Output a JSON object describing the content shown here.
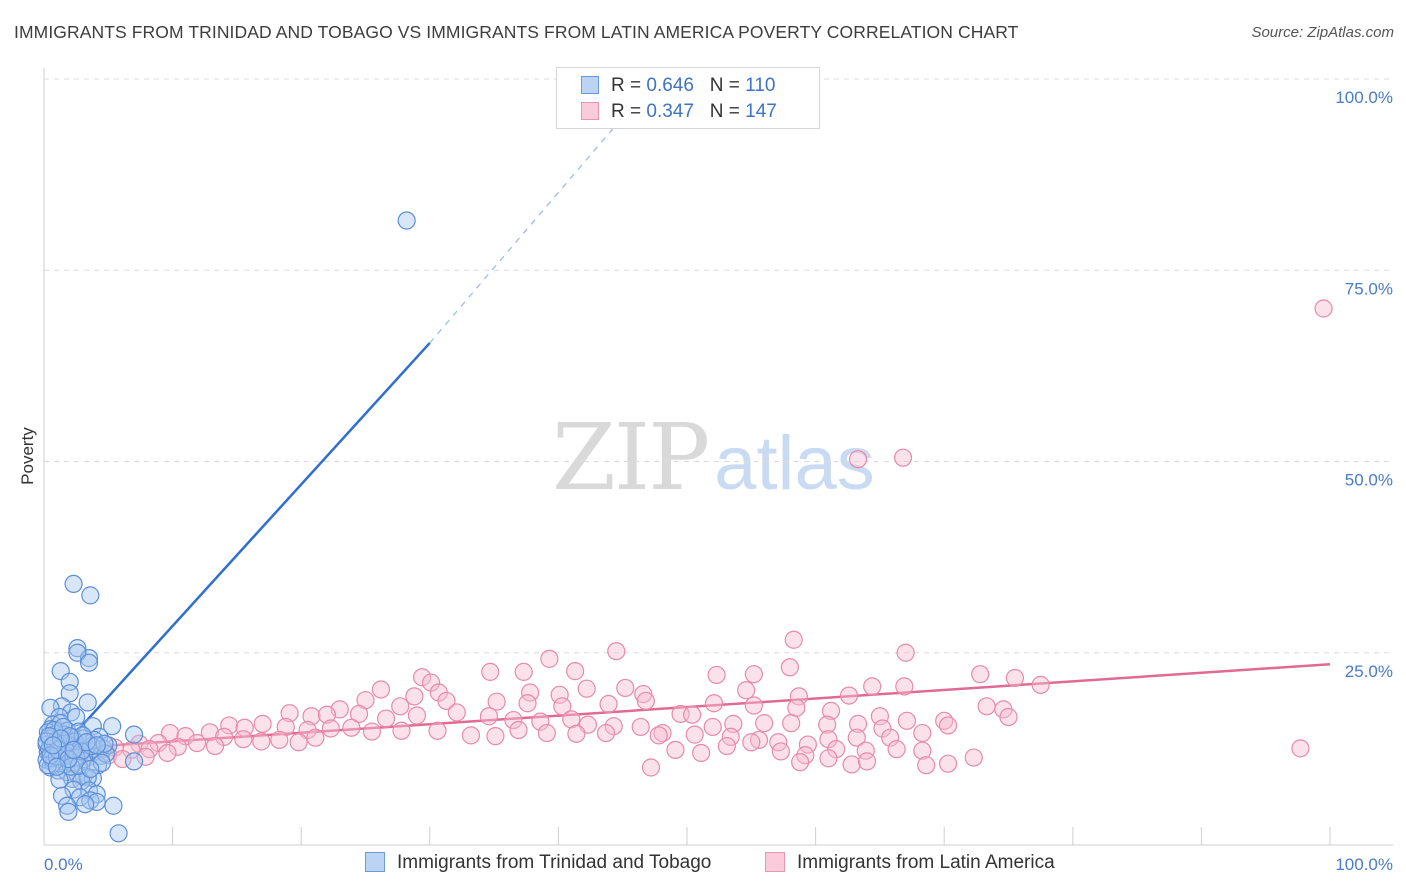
{
  "header": {
    "title": "IMMIGRANTS FROM TRINIDAD AND TOBAGO VS IMMIGRANTS FROM LATIN AMERICA POVERTY CORRELATION CHART",
    "source": "Source: ZipAtlas.com"
  },
  "watermark": {
    "zip": "ZIP",
    "atlas": "atlas"
  },
  "legend": {
    "r_label": "R =",
    "n_label": "N =",
    "rows": [
      {
        "r": "0.646",
        "n": "110"
      },
      {
        "r": "0.347",
        "n": "147"
      }
    ]
  },
  "colors": {
    "blue_fill": "#a9c8f0",
    "blue_stroke": "#5b8fd9",
    "blue_line": "#2f6fd0",
    "pink_fill": "#f6bcd0",
    "pink_stroke": "#e88aaa",
    "pink_line": "#e06a94"
  },
  "chart_data": {
    "type": "scatter",
    "title": "IMMIGRANTS FROM TRINIDAD AND TOBAGO VS IMMIGRANTS FROM LATIN AMERICA POVERTY CORRELATION CHART",
    "xlabel": "",
    "ylabel": "Poverty",
    "xlim": [
      0,
      100
    ],
    "ylim": [
      0,
      100
    ],
    "x_tick_labels": [
      "0.0%",
      "100.0%"
    ],
    "y_ticks": [
      25,
      50,
      75,
      100
    ],
    "y_tick_labels": [
      "25.0%",
      "50.0%",
      "75.0%",
      "100.0%"
    ],
    "grid": "horizontal-dashed",
    "legend_position": "top-center",
    "series": [
      {
        "name": "Immigrants from Trinidad and Tobago",
        "R": 0.646,
        "N": 110,
        "trend": {
          "x": [
            0,
            30
          ],
          "y": [
            10,
            65.5
          ],
          "dashed_to": [
            45,
            95
          ]
        },
        "points": [
          [
            28.2,
            81.5
          ],
          [
            2.3,
            34
          ],
          [
            3.6,
            32.5
          ],
          [
            2.6,
            25.6
          ],
          [
            3.5,
            24.3
          ],
          [
            2.6,
            25
          ],
          [
            3.5,
            23.7
          ],
          [
            1.3,
            22.6
          ],
          [
            2.0,
            21.2
          ],
          [
            2.0,
            19.7
          ],
          [
            3.4,
            18.5
          ],
          [
            1.4,
            18
          ],
          [
            0.5,
            17.8
          ],
          [
            2.1,
            17.2
          ],
          [
            1.2,
            16.6
          ],
          [
            0.7,
            15.6
          ],
          [
            1.3,
            15.8
          ],
          [
            2.5,
            16.6
          ],
          [
            0.5,
            15
          ],
          [
            1.8,
            14.8
          ],
          [
            0.3,
            14.6
          ],
          [
            0.9,
            14.4
          ],
          [
            1.6,
            14.3
          ],
          [
            2.7,
            14.7
          ],
          [
            3.8,
            15.4
          ],
          [
            5.3,
            15.4
          ],
          [
            0.4,
            13.8
          ],
          [
            1.0,
            13.6
          ],
          [
            2.2,
            13.9
          ],
          [
            3.1,
            13.8
          ],
          [
            4.3,
            14
          ],
          [
            7.0,
            14.3
          ],
          [
            0.2,
            13
          ],
          [
            0.6,
            12.8
          ],
          [
            1.2,
            12.7
          ],
          [
            1.9,
            12.9
          ],
          [
            2.6,
            12.6
          ],
          [
            3.3,
            12.4
          ],
          [
            4.0,
            12.2
          ],
          [
            4.6,
            12.5
          ],
          [
            0.3,
            12
          ],
          [
            0.8,
            11.8
          ],
          [
            1.4,
            11.6
          ],
          [
            2.0,
            11.9
          ],
          [
            2.8,
            11.7
          ],
          [
            3.5,
            11.4
          ],
          [
            4.4,
            11.5
          ],
          [
            0.2,
            11
          ],
          [
            0.7,
            10.6
          ],
          [
            1.5,
            10.8
          ],
          [
            2.3,
            10.5
          ],
          [
            3.0,
            10.9
          ],
          [
            4.2,
            10.3
          ],
          [
            7.0,
            10.8
          ],
          [
            0.5,
            10
          ],
          [
            1.1,
            9.6
          ],
          [
            1.8,
            9.4
          ],
          [
            2.6,
            9.1
          ],
          [
            3.1,
            8.9
          ],
          [
            3.8,
            8.6
          ],
          [
            2.2,
            8.5
          ],
          [
            3.4,
            8.7
          ],
          [
            1.2,
            8.4
          ],
          [
            2.9,
            8.2
          ],
          [
            2.3,
            7.1
          ],
          [
            3.5,
            7.0
          ],
          [
            4.1,
            6.5
          ],
          [
            1.4,
            6.3
          ],
          [
            2.8,
            6.1
          ],
          [
            3.6,
            5.7
          ],
          [
            4.1,
            5.5
          ],
          [
            1.8,
            5.0
          ],
          [
            3.2,
            5.2
          ],
          [
            5.4,
            5.0
          ],
          [
            1.9,
            4.2
          ],
          [
            5.8,
            1.4
          ],
          [
            0.4,
            12.4
          ],
          [
            1.6,
            13.1
          ],
          [
            2.4,
            13.4
          ],
          [
            0.9,
            13.2
          ],
          [
            3.9,
            13.6
          ],
          [
            5.0,
            12.9
          ],
          [
            0.6,
            11.2
          ],
          [
            1.7,
            12.2
          ],
          [
            2.5,
            11.3
          ],
          [
            3.7,
            12.8
          ],
          [
            4.8,
            11.8
          ],
          [
            0.3,
            10.3
          ],
          [
            1.0,
            11.4
          ],
          [
            2.1,
            10.1
          ],
          [
            4.5,
            10.6
          ],
          [
            0.8,
            14.9
          ],
          [
            1.5,
            15.3
          ],
          [
            0.2,
            13.4
          ],
          [
            3.0,
            14.2
          ],
          [
            2.9,
            12.1
          ],
          [
            1.1,
            12.3
          ],
          [
            0.5,
            11.6
          ],
          [
            3.3,
            13.3
          ],
          [
            4.7,
            13.1
          ],
          [
            2.0,
            14.1
          ],
          [
            0.4,
            14.1
          ],
          [
            1.3,
            13.8
          ],
          [
            2.7,
            10.2
          ],
          [
            3.6,
            9.8
          ],
          [
            1.9,
            11.1
          ],
          [
            0.7,
            12.9
          ],
          [
            4.1,
            12.9
          ],
          [
            2.3,
            12.3
          ],
          [
            1.0,
            10.1
          ]
        ]
      },
      {
        "name": "Immigrants from Latin America",
        "R": 0.347,
        "N": 147,
        "trend": {
          "x": [
            0,
            100
          ],
          "y": [
            12.3,
            23.5
          ]
        },
        "points": [
          [
            99.5,
            70
          ],
          [
            63.3,
            50.3
          ],
          [
            66.8,
            50.5
          ],
          [
            97.7,
            12.5
          ],
          [
            58.3,
            26.7
          ],
          [
            67.0,
            25.0
          ],
          [
            44.5,
            25.2
          ],
          [
            39.3,
            24.2
          ],
          [
            58.0,
            23.1
          ],
          [
            52.3,
            22.1
          ],
          [
            55.2,
            22.2
          ],
          [
            72.8,
            22.2
          ],
          [
            75.5,
            21.7
          ],
          [
            77.5,
            20.8
          ],
          [
            41.3,
            22.6
          ],
          [
            34.7,
            22.5
          ],
          [
            37.3,
            22.5
          ],
          [
            29.4,
            21.8
          ],
          [
            30.1,
            21.1
          ],
          [
            26.2,
            20.2
          ],
          [
            28.8,
            19.3
          ],
          [
            30.7,
            19.8
          ],
          [
            37.8,
            19.8
          ],
          [
            40.1,
            19.5
          ],
          [
            42.2,
            20.3
          ],
          [
            45.2,
            20.4
          ],
          [
            46.6,
            19.6
          ],
          [
            54.6,
            20.1
          ],
          [
            58.7,
            19.3
          ],
          [
            62.6,
            19.4
          ],
          [
            64.4,
            20.6
          ],
          [
            66.9,
            20.6
          ],
          [
            25.0,
            18.8
          ],
          [
            27.7,
            18.0
          ],
          [
            31.3,
            18.7
          ],
          [
            35.2,
            18.6
          ],
          [
            37.6,
            18.4
          ],
          [
            40.3,
            18.0
          ],
          [
            43.9,
            18.3
          ],
          [
            46.8,
            18.7
          ],
          [
            49.5,
            17.0
          ],
          [
            52.1,
            18.4
          ],
          [
            55.2,
            18.1
          ],
          [
            58.5,
            17.8
          ],
          [
            61.2,
            17.4
          ],
          [
            73.3,
            18.0
          ],
          [
            74.6,
            17.6
          ],
          [
            75.0,
            16.6
          ],
          [
            70.0,
            16.1
          ],
          [
            67.1,
            16.1
          ],
          [
            65.0,
            16.7
          ],
          [
            23.0,
            17.6
          ],
          [
            19.1,
            17.1
          ],
          [
            20.8,
            16.7
          ],
          [
            22.0,
            16.9
          ],
          [
            24.5,
            17.0
          ],
          [
            26.6,
            16.4
          ],
          [
            29.0,
            16.8
          ],
          [
            32.1,
            17.2
          ],
          [
            34.6,
            16.7
          ],
          [
            36.5,
            16.2
          ],
          [
            38.6,
            16.0
          ],
          [
            41.0,
            16.3
          ],
          [
            42.3,
            15.6
          ],
          [
            44.3,
            15.4
          ],
          [
            46.4,
            15.3
          ],
          [
            48.1,
            14.5
          ],
          [
            50.4,
            16.9
          ],
          [
            52.0,
            15.3
          ],
          [
            53.6,
            15.7
          ],
          [
            56.0,
            15.8
          ],
          [
            58.1,
            15.8
          ],
          [
            60.9,
            15.6
          ],
          [
            63.3,
            15.7
          ],
          [
            65.2,
            15.1
          ],
          [
            68.3,
            14.5
          ],
          [
            70.3,
            15.5
          ],
          [
            14.4,
            15.5
          ],
          [
            15.6,
            15.2
          ],
          [
            17.0,
            15.7
          ],
          [
            18.8,
            15.3
          ],
          [
            20.5,
            14.9
          ],
          [
            22.3,
            15.1
          ],
          [
            23.9,
            15.2
          ],
          [
            25.5,
            14.7
          ],
          [
            27.8,
            14.8
          ],
          [
            30.6,
            14.8
          ],
          [
            33.2,
            14.2
          ],
          [
            35.1,
            14.1
          ],
          [
            36.9,
            14.9
          ],
          [
            39.1,
            14.5
          ],
          [
            41.4,
            14.4
          ],
          [
            43.7,
            14.5
          ],
          [
            47.8,
            14.2
          ],
          [
            50.6,
            14.3
          ],
          [
            53.4,
            14.0
          ],
          [
            55.6,
            13.6
          ],
          [
            57.1,
            13.3
          ],
          [
            59.4,
            13.0
          ],
          [
            61.0,
            13.7
          ],
          [
            63.2,
            13.9
          ],
          [
            65.8,
            13.9
          ],
          [
            9.8,
            14.5
          ],
          [
            11.0,
            14.1
          ],
          [
            12.9,
            14.6
          ],
          [
            14.0,
            14.0
          ],
          [
            15.5,
            13.7
          ],
          [
            16.9,
            13.4
          ],
          [
            18.3,
            13.6
          ],
          [
            19.8,
            13.3
          ],
          [
            21.1,
            13.9
          ],
          [
            7.4,
            13.1
          ],
          [
            8.9,
            13.2
          ],
          [
            10.4,
            12.7
          ],
          [
            11.9,
            13.2
          ],
          [
            13.3,
            12.8
          ],
          [
            5.5,
            12.6
          ],
          [
            6.8,
            12.3
          ],
          [
            8.2,
            12.4
          ],
          [
            9.6,
            11.9
          ],
          [
            4.3,
            12.1
          ],
          [
            3.2,
            11.8
          ],
          [
            5.0,
            11.6
          ],
          [
            6.1,
            11.1
          ],
          [
            2.5,
            12.4
          ],
          [
            1.5,
            12.6
          ],
          [
            1.8,
            13.6
          ],
          [
            3.9,
            13.0
          ],
          [
            7.9,
            11.4
          ],
          [
            49.1,
            12.3
          ],
          [
            51.1,
            11.9
          ],
          [
            53.1,
            12.8
          ],
          [
            55.0,
            13.3
          ],
          [
            57.3,
            12.1
          ],
          [
            59.2,
            11.6
          ],
          [
            61.6,
            12.4
          ],
          [
            63.9,
            12.2
          ],
          [
            66.3,
            12.4
          ],
          [
            68.3,
            12.2
          ],
          [
            72.3,
            11.3
          ],
          [
            62.8,
            10.4
          ],
          [
            64.0,
            10.8
          ],
          [
            68.6,
            10.3
          ],
          [
            70.3,
            10.5
          ],
          [
            47.2,
            10.0
          ],
          [
            61.0,
            11.2
          ],
          [
            58.8,
            10.7
          ]
        ]
      }
    ]
  },
  "bottom_legend": [
    {
      "label": "Immigrants from Trinidad and Tobago"
    },
    {
      "label": "Immigrants from Latin America"
    }
  ]
}
